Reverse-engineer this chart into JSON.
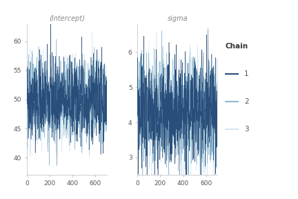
{
  "title1": "(Intercept)",
  "title2": "sigma",
  "n_iter": 700,
  "intercept_mean": 50.0,
  "intercept_sd": 3.5,
  "sigma_mean": 4.3,
  "sigma_sd": 0.75,
  "chain_colors": [
    "#2a4e7a",
    "#7aaec8",
    "#c5dfee"
  ],
  "chain_alphas": [
    1.0,
    0.85,
    0.75
  ],
  "chain_zorders": [
    3,
    2,
    1
  ],
  "legend_title": "Chain",
  "legend_labels": [
    "1",
    "2",
    "3"
  ],
  "xlim": [
    0,
    700
  ],
  "intercept_ylim": [
    37,
    63
  ],
  "intercept_yticks": [
    40,
    45,
    50,
    55,
    60
  ],
  "sigma_ylim": [
    2.5,
    6.8
  ],
  "sigma_yticks": [
    3,
    4,
    5,
    6
  ],
  "xticks": [
    0,
    200,
    400,
    600
  ],
  "bg_color": "#ffffff",
  "line_width": 0.35,
  "seed": 42
}
